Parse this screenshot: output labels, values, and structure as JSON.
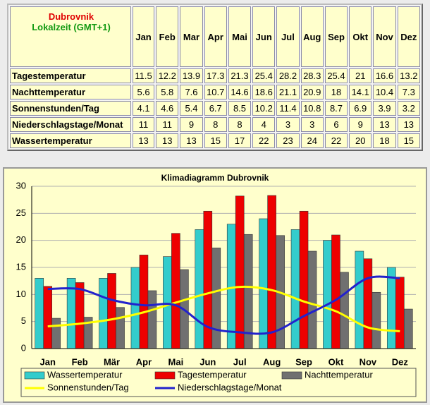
{
  "table": {
    "title": "Dubrovnik",
    "subtitle": "Lokalzeit (GMT+1)",
    "columns": [
      "Jan",
      "Feb",
      "Mar",
      "Apr",
      "Mai",
      "Jun",
      "Jul",
      "Aug",
      "Sep",
      "Okt",
      "Nov",
      "Dez"
    ],
    "rows": [
      {
        "label": "Tagestemperatur",
        "values": [
          11.5,
          12.2,
          13.9,
          17.3,
          21.3,
          25.4,
          28.2,
          28.3,
          25.4,
          21,
          16.6,
          13.2
        ]
      },
      {
        "label": "Nachttemperatur",
        "values": [
          5.6,
          5.8,
          7.6,
          10.7,
          14.6,
          18.6,
          21.1,
          20.9,
          18,
          14.1,
          10.4,
          7.3
        ]
      },
      {
        "label": "Sonnenstunden/Tag",
        "values": [
          4.1,
          4.6,
          5.4,
          6.7,
          8.5,
          10.2,
          11.4,
          10.8,
          8.7,
          6.9,
          3.9,
          3.2
        ]
      },
      {
        "label": "Niederschlagstage/Monat",
        "values": [
          11,
          11,
          9,
          8,
          8,
          4,
          3,
          3,
          6,
          9,
          13,
          13
        ]
      },
      {
        "label": "Wassertemperatur",
        "values": [
          13,
          13,
          13,
          15,
          17,
          22,
          23,
          24,
          22,
          20,
          18,
          15
        ]
      }
    ]
  },
  "chart_data": {
    "type": "bar",
    "title": "Klimadiagramm Dubrovnik",
    "categories": [
      "Jan",
      "Feb",
      "Mär",
      "Apr",
      "Mai",
      "Jun",
      "Jul",
      "Aug",
      "Sep",
      "Okt",
      "Nov",
      "Dez"
    ],
    "ylim": [
      0,
      30
    ],
    "yticks": [
      0,
      5,
      10,
      15,
      20,
      25,
      30
    ],
    "grid": true,
    "series": [
      {
        "name": "Wassertemperatur",
        "type": "bar",
        "color": "#33cccc",
        "values": [
          13,
          13,
          13,
          15,
          17,
          22,
          23,
          24,
          22,
          20,
          18,
          15
        ]
      },
      {
        "name": "Tagestemperatur",
        "type": "bar",
        "color": "#ee0000",
        "values": [
          11.5,
          12.2,
          13.9,
          17.3,
          21.3,
          25.4,
          28.2,
          28.3,
          25.4,
          21,
          16.6,
          13.2
        ]
      },
      {
        "name": "Nachttemperatur",
        "type": "bar",
        "color": "#707070",
        "values": [
          5.6,
          5.8,
          7.6,
          10.7,
          14.6,
          18.6,
          21.1,
          20.9,
          18,
          14.1,
          10.4,
          7.3
        ]
      },
      {
        "name": "Sonnenstunden/Tag",
        "type": "line",
        "color": "#ffff00",
        "values": [
          4.1,
          4.6,
          5.4,
          6.7,
          8.5,
          10.2,
          11.4,
          10.8,
          8.7,
          6.9,
          3.9,
          3.2
        ]
      },
      {
        "name": "Niederschlagstage/Monat",
        "type": "line",
        "color": "#2222cc",
        "values": [
          11,
          11,
          9,
          8,
          8,
          4,
          3,
          3,
          6,
          9,
          13,
          13
        ]
      }
    ]
  }
}
